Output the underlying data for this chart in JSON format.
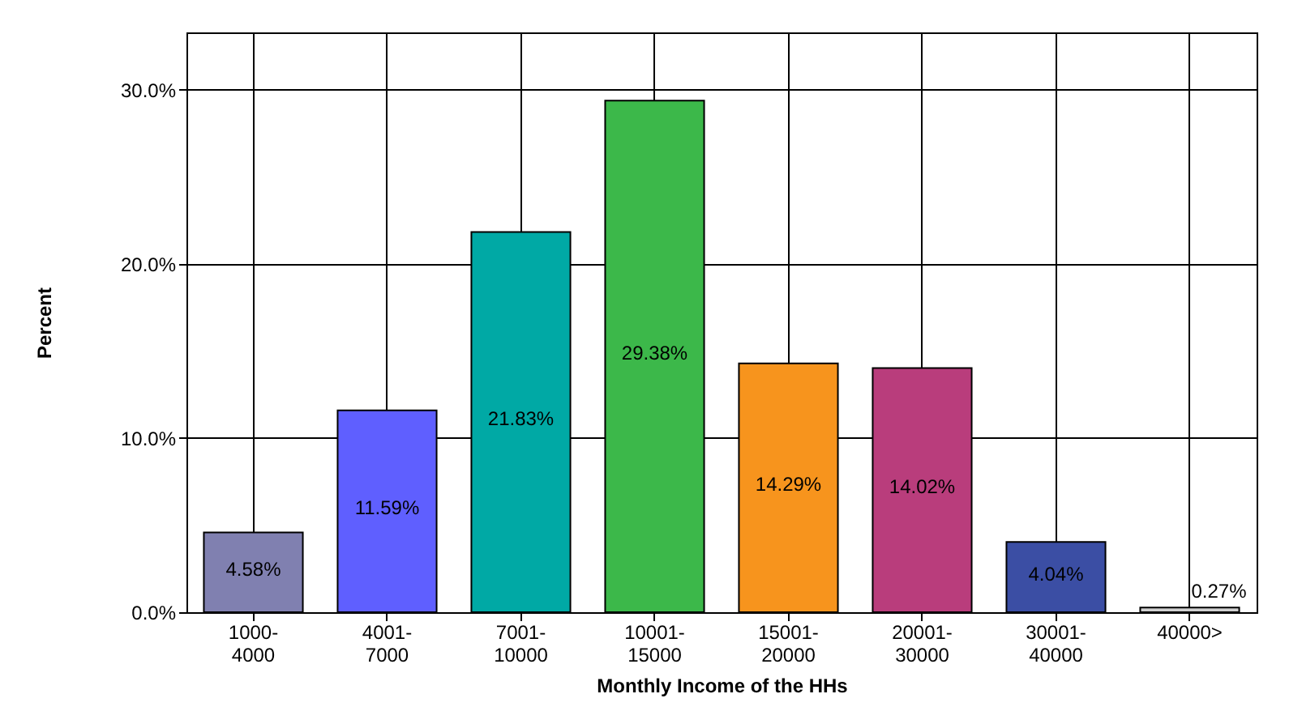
{
  "chart_data": {
    "type": "bar",
    "xlabel": "Monthly Income of the HHs",
    "ylabel": "Percent",
    "categories": [
      "1000-4000",
      "4001-7000",
      "7001-10000",
      "10001-15000",
      "15001-20000",
      "20001-30000",
      "30001-40000",
      "40000>"
    ],
    "values": [
      4.58,
      11.59,
      21.83,
      29.38,
      14.29,
      14.02,
      4.04,
      0.27
    ],
    "colors": [
      "#8080b0",
      "#5f5fff",
      "#00a9a5",
      "#3cb84a",
      "#f7941d",
      "#b93d7c",
      "#3b4ea4",
      "#d0d0d0"
    ],
    "ylim": [
      0,
      33.3
    ],
    "yticks": [
      {
        "value": 0,
        "label": "0.0%"
      },
      {
        "value": 10,
        "label": "10.0%"
      },
      {
        "value": 20,
        "label": "20.0%"
      },
      {
        "value": 30,
        "label": "30.0%"
      }
    ],
    "value_labels": [
      "4.58%",
      "11.59%",
      "21.83%",
      "29.38%",
      "14.29%",
      "14.02%",
      "4.04%",
      "0.27%"
    ],
    "grid": true
  }
}
